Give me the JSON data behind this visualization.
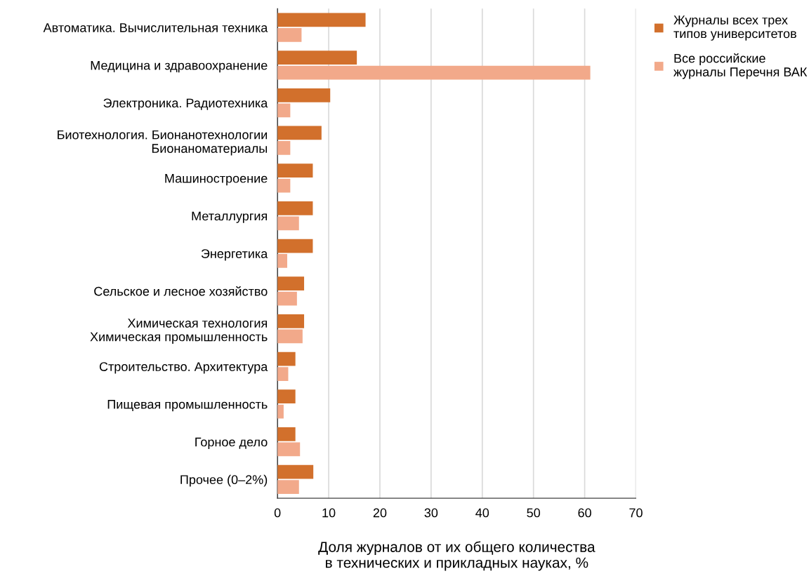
{
  "chart_data": {
    "type": "bar",
    "orientation": "horizontal",
    "xlabel": "Доля журналов от их общего количества\nв технических и прикладных науках, %",
    "categories": [
      "Автоматика. Вычислительная техника",
      "Медицина и здравоохранение",
      "Электроника. Радиотехника",
      "Биотехнология. Бионанотехнологии\nБионаноматериалы",
      "Машиностроение",
      "Металлургия",
      "Энергетика",
      "Сельское и лесное хозяйство",
      "Химическая технология\nХимическая промышленность",
      "Строительство. Архитектура",
      "Пищевая промышленность",
      "Горное дело",
      "Прочее (0–2%)"
    ],
    "series": [
      {
        "name": "Журналы всех трех\nтипов университетов",
        "color": "#d2702c",
        "values": [
          17.2,
          15.5,
          10.3,
          8.6,
          6.9,
          6.9,
          6.9,
          5.2,
          5.2,
          3.5,
          3.5,
          3.5,
          7.0
        ]
      },
      {
        "name": "Все российские\nжурналы Перечня ВАК",
        "color": "#f2a98a",
        "values": [
          4.7,
          61.1,
          2.5,
          2.5,
          2.5,
          4.2,
          1.9,
          3.8,
          4.9,
          2.1,
          1.2,
          4.4,
          4.2
        ]
      }
    ],
    "xlim": [
      0,
      70
    ],
    "xticks": [
      0,
      10,
      20,
      30,
      40,
      50,
      60,
      70
    ],
    "grid": "x",
    "legend": "top right"
  }
}
